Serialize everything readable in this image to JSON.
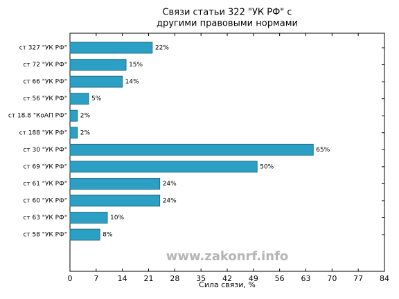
{
  "chart_data": {
    "type": "bar",
    "orientation": "horizontal",
    "title": [
      "Связи статьи 322 \"УК РФ\" с",
      "другими правовыми нормами"
    ],
    "x_label": "Сила связи, %",
    "categories": [
      "ст 327 \"УК РФ\"",
      "ст 72 \"УК РФ\"",
      "ст 66 \"УК РФ\"",
      "ст 56 \"УК РФ\"",
      "ст 18.8 \"КоАП РФ\"",
      "ст 188 \"УК РФ\"",
      "ст 30 \"УК РФ\"",
      "ст 69 \"УК РФ\"",
      "ст 61 \"УК РФ\"",
      "ст 60 \"УК РФ\"",
      "ст 63 \"УК РФ\"",
      "ст 58 \"УК РФ\""
    ],
    "values": [
      22,
      15,
      14,
      5,
      2,
      2,
      65,
      50,
      24,
      24,
      10,
      8
    ],
    "value_labels": [
      "22%",
      "15%",
      "14%",
      "5%",
      "2%",
      "2%",
      "65%",
      "50%",
      "24%",
      "24%",
      "10%",
      "8%"
    ],
    "color": "#2b9fc4",
    "xlim": [
      0,
      84
    ],
    "xticks": [
      0,
      7,
      14,
      21,
      28,
      35,
      42,
      49,
      56,
      63,
      70,
      77,
      84
    ],
    "annotation": "www.zakonrf.info"
  }
}
